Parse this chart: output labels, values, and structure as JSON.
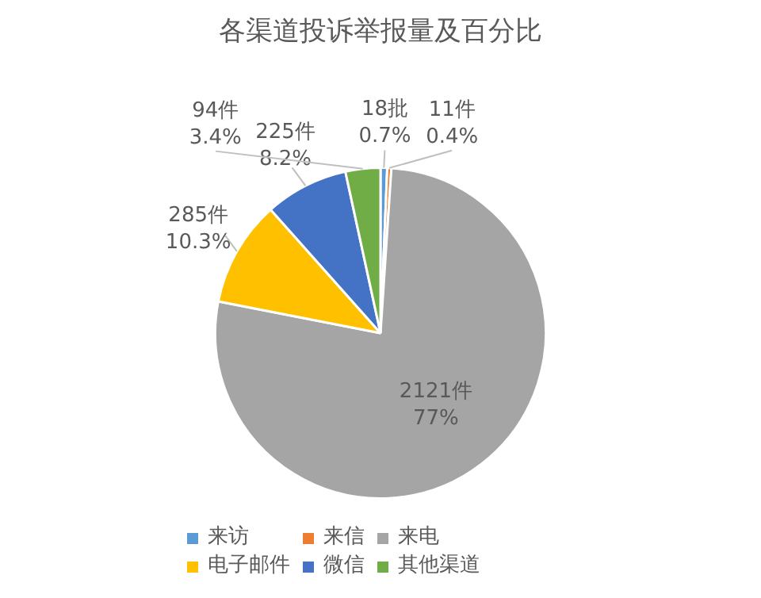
{
  "chart_data": {
    "type": "pie",
    "title": "各渠道投诉举报量及百分比",
    "categories": [
      "来访",
      "来信",
      "来电",
      "电子邮件",
      "微信",
      "其他渠道"
    ],
    "values": [
      18,
      11,
      2121,
      285,
      225,
      94
    ],
    "colors": [
      "#5b9bd5",
      "#ed7d31",
      "#a5a5a5",
      "#ffc000",
      "#4472c4",
      "#70ad47"
    ],
    "value_labels": [
      "18批\n0.7%",
      "11件\n0.4%",
      "2121件\n77%",
      "285件\n10.3%",
      "225件\n8.2%",
      "94件\n3.4%"
    ],
    "legend": "bottom"
  }
}
